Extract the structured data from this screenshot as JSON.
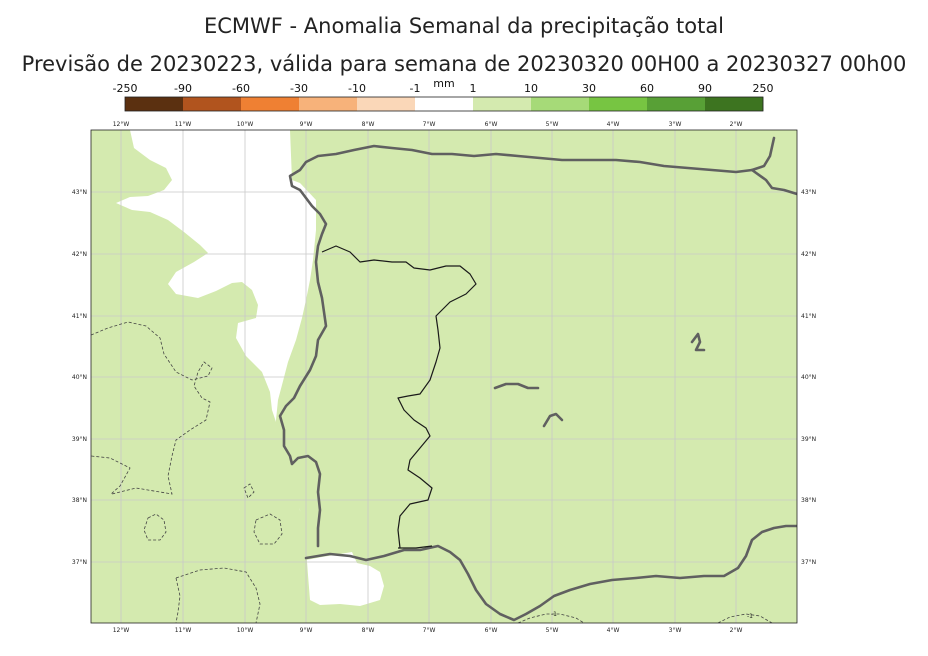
{
  "title": "ECMWF - Anomalia Semanal da precipitação total",
  "subtitle": "Previsão de 20230223, válida para semana de 20230320 00H00 a 20230327 00h00",
  "colorbar": {
    "unit": "mm",
    "boundaries": [
      "-250",
      "-90",
      "-60",
      "-30",
      "-10",
      "-1",
      "1",
      "10",
      "30",
      "60",
      "90",
      "250"
    ],
    "colors": [
      "#5b3010",
      "#b1541e",
      "#ef8033",
      "#f7b27a",
      "#fad7b8",
      "#ffffff",
      "#d4eaaf",
      "#a6da78",
      "#77c542",
      "#58a036",
      "#3d7420"
    ]
  },
  "map": {
    "land_color": "#ffffff",
    "anomaly_fill_color": "#d4eaaf",
    "coastline_color": "#606060",
    "grid_color": "#c8c8c8",
    "lon_labels": [
      "12°W",
      "11°W",
      "10°W",
      "9°W",
      "8°W",
      "7°W",
      "6°W",
      "5°W",
      "4°W",
      "3°W",
      "2°W"
    ],
    "lat_labels": [
      "43°N",
      "42°N",
      "41°N",
      "40°N",
      "39°N",
      "38°N",
      "37°N"
    ],
    "contour_labels": [
      "-1",
      "-1"
    ]
  }
}
